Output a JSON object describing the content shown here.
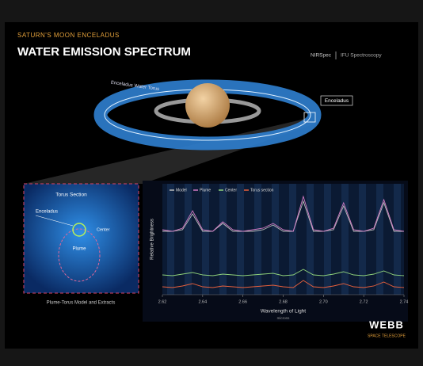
{
  "header": {
    "kicker": "SATURN'S MOON ENCELADUS",
    "title": "WATER EMISSION SPECTRUM",
    "instrument": "NIRSpec",
    "mode": "IFU Spectroscopy"
  },
  "diagram": {
    "torus_label": "Enceladus Water Torus",
    "enceladus_label": "Enceladus"
  },
  "inset": {
    "title": "Torus Section",
    "enceladus": "Enceladus",
    "center": "Center",
    "plume": "Plume",
    "caption": "Plume-Torus Model and Extracts"
  },
  "logo": {
    "name": "WEBB",
    "sub": "SPACE TELESCOPE"
  },
  "chart_data": {
    "type": "line",
    "x_label": "Wavelength of Light",
    "x_unit": "microns",
    "y_label": "Relative Brightness",
    "x": [
      2.62,
      2.625,
      2.63,
      2.635,
      2.64,
      2.645,
      2.65,
      2.655,
      2.66,
      2.665,
      2.67,
      2.675,
      2.68,
      2.685,
      2.69,
      2.695,
      2.7,
      2.705,
      2.71,
      2.715,
      2.72,
      2.725,
      2.73,
      2.735,
      2.74
    ],
    "xlim": [
      2.62,
      2.74
    ],
    "xticks": [
      2.62,
      2.64,
      2.66,
      2.68,
      {
        "value": 2.7,
        "label": "2.70"
      },
      2.72,
      2.74
    ],
    "ylim": [
      0,
      7
    ],
    "series": [
      {
        "name": "Model",
        "color": "#bbbbbb",
        "values": [
          4.0,
          4.0,
          4.1,
          5.1,
          4.0,
          4.0,
          4.5,
          4.0,
          4.0,
          4.0,
          4.1,
          4.4,
          4.0,
          4.0,
          5.9,
          4.0,
          4.0,
          4.1,
          5.6,
          4.0,
          4.0,
          4.1,
          5.8,
          4.0,
          4.0
        ]
      },
      {
        "name": "Plume",
        "color": "#d27bc5",
        "values": [
          4.1,
          4.0,
          4.2,
          5.3,
          4.1,
          4.0,
          4.6,
          4.1,
          4.0,
          4.1,
          4.2,
          4.5,
          4.1,
          4.0,
          6.2,
          4.1,
          4.0,
          4.2,
          5.8,
          4.1,
          4.0,
          4.2,
          6.0,
          4.1,
          4.0
        ]
      },
      {
        "name": "Center",
        "color": "#8fd17a",
        "values": [
          1.25,
          1.2,
          1.3,
          1.4,
          1.25,
          1.2,
          1.3,
          1.25,
          1.2,
          1.25,
          1.3,
          1.35,
          1.2,
          1.25,
          1.6,
          1.25,
          1.2,
          1.3,
          1.45,
          1.25,
          1.2,
          1.3,
          1.5,
          1.25,
          1.2
        ]
      },
      {
        "name": "Torus section",
        "color": "#e8603c",
        "values": [
          0.5,
          0.45,
          0.55,
          0.7,
          0.5,
          0.45,
          0.55,
          0.5,
          0.45,
          0.5,
          0.55,
          0.6,
          0.5,
          0.45,
          0.9,
          0.5,
          0.45,
          0.55,
          0.7,
          0.5,
          0.45,
          0.55,
          0.8,
          0.5,
          0.45
        ]
      }
    ]
  }
}
